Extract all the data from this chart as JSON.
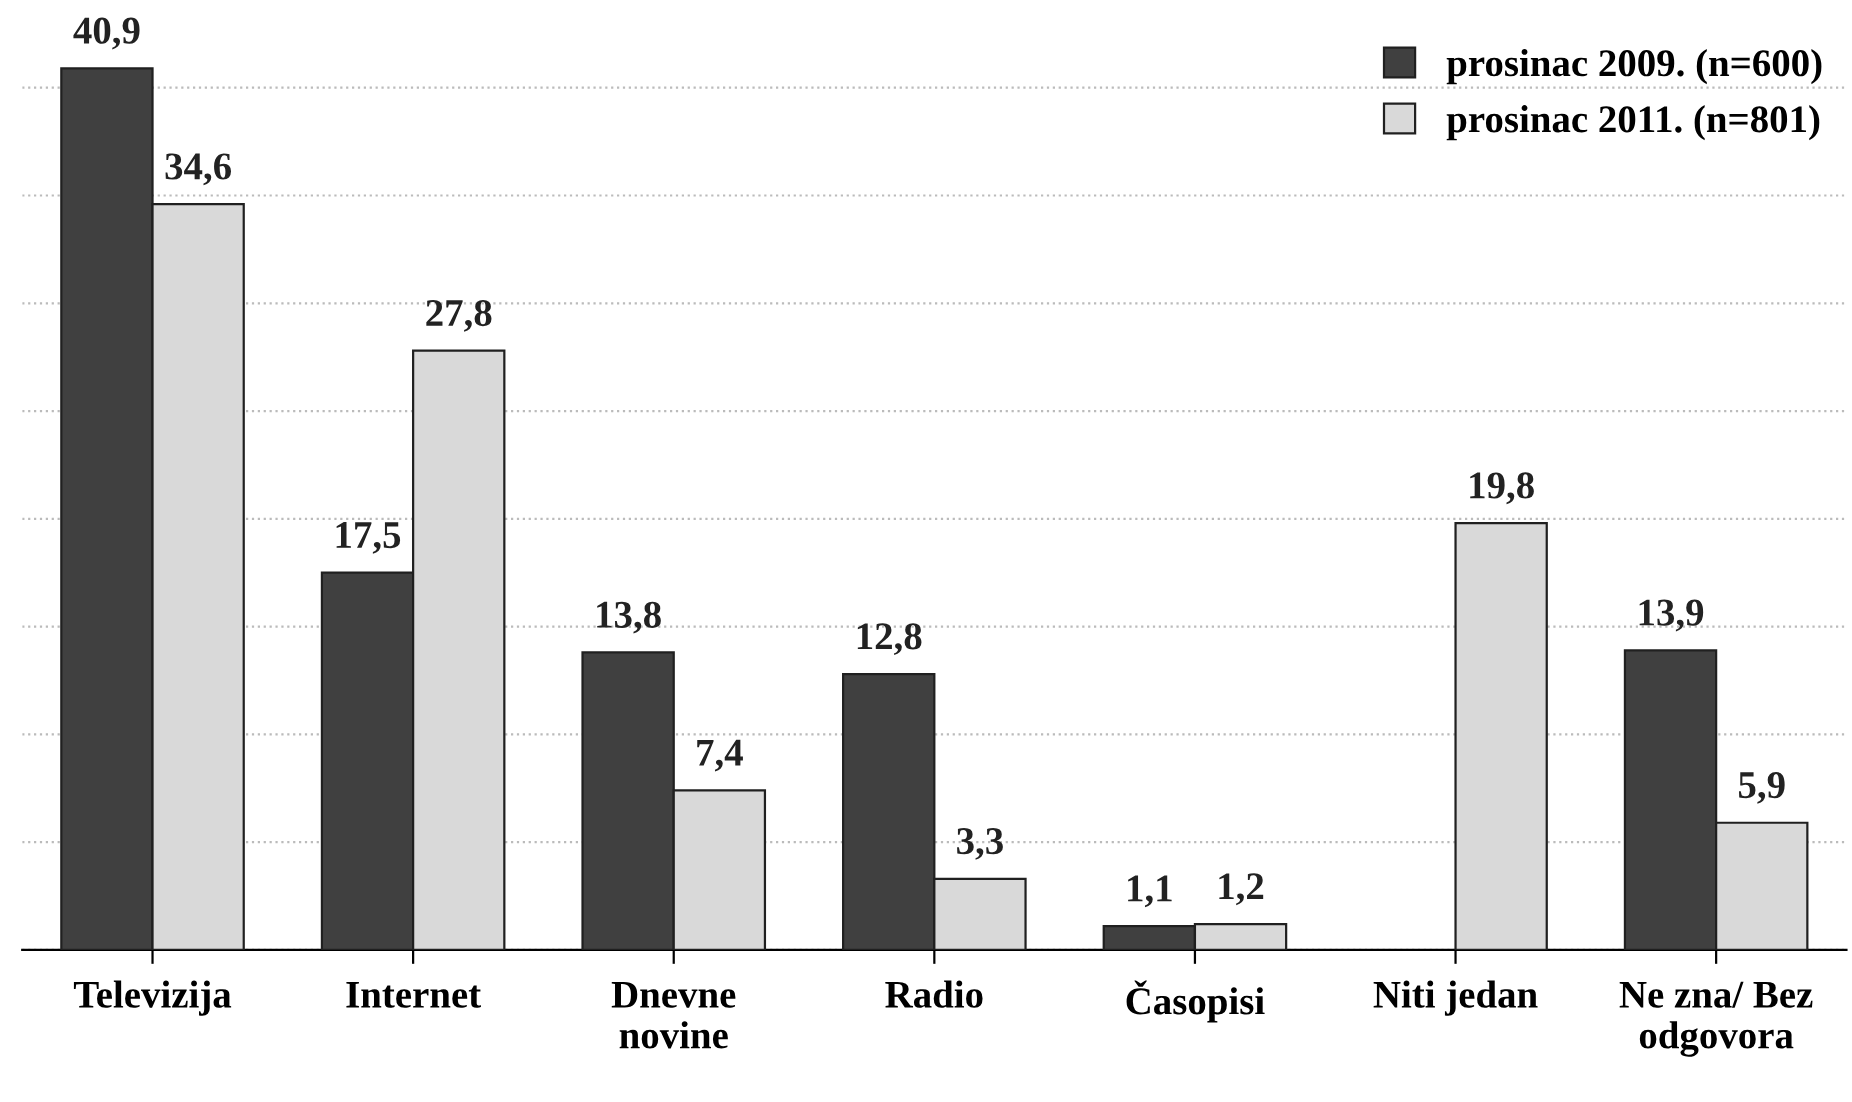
{
  "chart_data": {
    "type": "bar",
    "categories": [
      "Televizija",
      "Internet",
      "Dnevne\nnovine",
      "Radio",
      "Časopisi",
      "Niti jedan",
      "Ne zna/ Bez\nodgovora"
    ],
    "series": [
      {
        "name": "prosinac 2009. (n=600)",
        "color": "#404040",
        "values": [
          40.9,
          17.5,
          13.8,
          12.8,
          1.1,
          null,
          13.9
        ],
        "value_labels": [
          "40,9",
          "17,5",
          "13,8",
          "12,8",
          "1,1",
          null,
          "13,9"
        ]
      },
      {
        "name": "prosinac 2011. (n=801)",
        "color": "#d9d9d9",
        "values": [
          34.6,
          27.8,
          7.4,
          3.3,
          1.2,
          19.8,
          5.9
        ],
        "value_labels": [
          "34,6",
          "27,8",
          "7,4",
          "3,3",
          "1,2",
          "19,8",
          "5,9"
        ]
      }
    ],
    "tick_labels": "x",
    "grid": "y",
    "legend": "top right"
  }
}
